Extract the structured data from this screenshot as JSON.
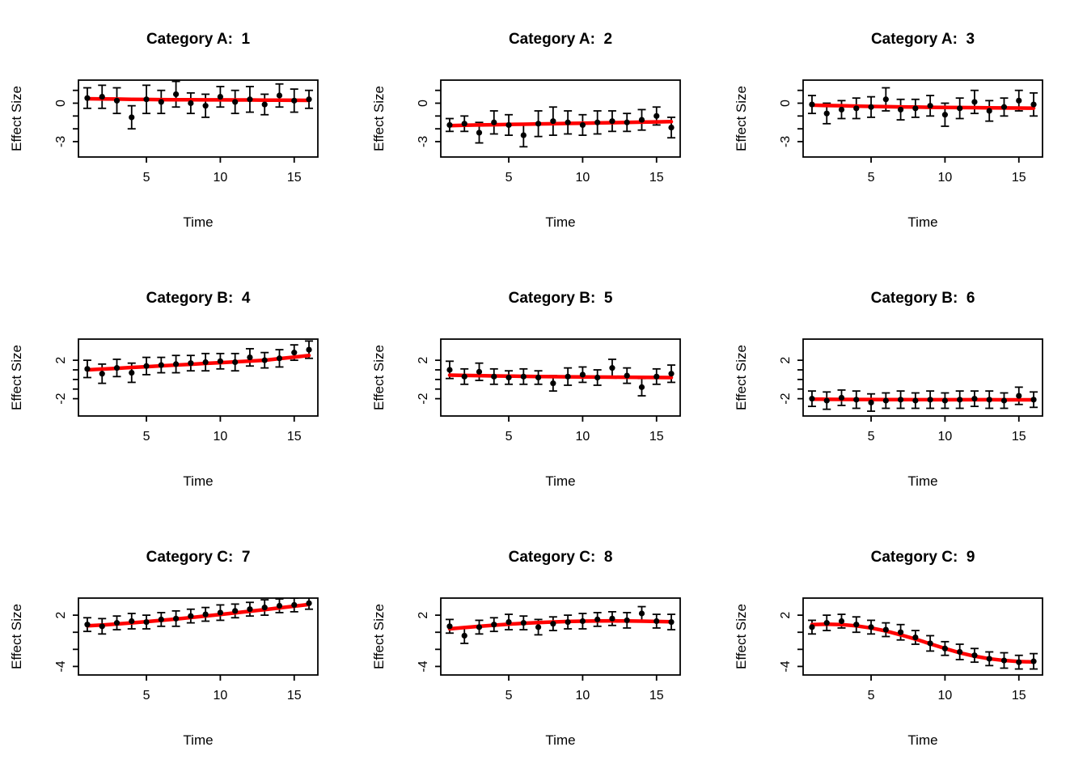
{
  "page": {
    "background": "#ffffff"
  },
  "colors": {
    "trend": "#FF0000",
    "point": "#000000",
    "axis": "#000000"
  },
  "chart_data": [
    {
      "type": "scatter",
      "title": "Category A:  1",
      "xlabel": "Time",
      "ylabel": "Effect Size",
      "x": [
        1,
        2,
        3,
        4,
        5,
        6,
        7,
        8,
        9,
        10,
        11,
        12,
        13,
        14,
        15,
        16
      ],
      "y": [
        0.4,
        0.5,
        0.2,
        -1.1,
        0.3,
        0.1,
        0.7,
        0.0,
        -0.2,
        0.5,
        0.1,
        0.3,
        -0.1,
        0.6,
        0.2,
        0.3
      ],
      "err": [
        0.8,
        0.9,
        1.0,
        0.9,
        1.1,
        0.9,
        1.0,
        0.8,
        0.9,
        0.8,
        0.9,
        1.0,
        0.8,
        0.9,
        0.9,
        0.7
      ],
      "trend": [
        0.35,
        0.33,
        0.32,
        0.3,
        0.29,
        0.28,
        0.27,
        0.27,
        0.26,
        0.26,
        0.25,
        0.25,
        0.24,
        0.24,
        0.23,
        0.22
      ],
      "xlim": [
        0.4,
        16.6
      ],
      "ylim": [
        -4.2,
        1.8
      ],
      "xticks": [
        5,
        10,
        15
      ],
      "yticks": [
        {
          "v": 1,
          "label": ""
        },
        {
          "v": 0,
          "label": "0"
        },
        {
          "v": -1,
          "label": ""
        },
        {
          "v": -2,
          "label": ""
        },
        {
          "v": -3,
          "label": "-3"
        }
      ],
      "grid": false
    },
    {
      "type": "scatter",
      "title": "Category A:  2",
      "xlabel": "Time",
      "ylabel": "Effect Size",
      "x": [
        1,
        2,
        3,
        4,
        5,
        6,
        7,
        8,
        9,
        10,
        11,
        12,
        13,
        14,
        15,
        16
      ],
      "y": [
        -1.7,
        -1.6,
        -2.3,
        -1.5,
        -1.7,
        -2.5,
        -1.6,
        -1.4,
        -1.5,
        -1.7,
        -1.5,
        -1.4,
        -1.5,
        -1.3,
        -1.0,
        -1.9
      ],
      "err": [
        0.5,
        0.6,
        0.8,
        0.9,
        0.8,
        0.9,
        1.0,
        1.1,
        0.9,
        0.8,
        0.9,
        0.8,
        0.7,
        0.8,
        0.7,
        0.8
      ],
      "trend": [
        -1.75,
        -1.72,
        -1.7,
        -1.68,
        -1.66,
        -1.64,
        -1.62,
        -1.6,
        -1.58,
        -1.56,
        -1.54,
        -1.52,
        -1.5,
        -1.48,
        -1.46,
        -1.44
      ],
      "xlim": [
        0.4,
        16.6
      ],
      "ylim": [
        -4.2,
        1.8
      ],
      "xticks": [
        5,
        10,
        15
      ],
      "yticks": [
        {
          "v": 1,
          "label": ""
        },
        {
          "v": 0,
          "label": "0"
        },
        {
          "v": -1,
          "label": ""
        },
        {
          "v": -2,
          "label": ""
        },
        {
          "v": -3,
          "label": "-3"
        }
      ],
      "grid": false
    },
    {
      "type": "scatter",
      "title": "Category A:  3",
      "xlabel": "Time",
      "ylabel": "Effect Size",
      "x": [
        1,
        2,
        3,
        4,
        5,
        6,
        7,
        8,
        9,
        10,
        11,
        12,
        13,
        14,
        15,
        16
      ],
      "y": [
        -0.1,
        -0.8,
        -0.5,
        -0.4,
        -0.3,
        0.3,
        -0.5,
        -0.4,
        -0.2,
        -0.9,
        -0.4,
        0.1,
        -0.6,
        -0.3,
        0.2,
        -0.1
      ],
      "err": [
        0.7,
        0.8,
        0.7,
        0.8,
        0.8,
        0.9,
        0.8,
        0.7,
        0.8,
        0.9,
        0.8,
        0.9,
        0.8,
        0.7,
        0.8,
        0.9
      ],
      "trend": [
        -0.15,
        -0.18,
        -0.2,
        -0.23,
        -0.25,
        -0.27,
        -0.29,
        -0.3,
        -0.32,
        -0.33,
        -0.34,
        -0.35,
        -0.36,
        -0.37,
        -0.38,
        -0.39
      ],
      "xlim": [
        0.4,
        16.6
      ],
      "ylim": [
        -4.2,
        1.8
      ],
      "xticks": [
        5,
        10,
        15
      ],
      "yticks": [
        {
          "v": 1,
          "label": ""
        },
        {
          "v": 0,
          "label": "0"
        },
        {
          "v": -1,
          "label": ""
        },
        {
          "v": -2,
          "label": ""
        },
        {
          "v": -3,
          "label": "-3"
        }
      ],
      "grid": false
    },
    {
      "type": "scatter",
      "title": "Category B:  4",
      "xlabel": "Time",
      "ylabel": "Effect Size",
      "x": [
        1,
        2,
        3,
        4,
        5,
        6,
        7,
        8,
        9,
        10,
        11,
        12,
        13,
        14,
        15,
        16
      ],
      "y": [
        1.1,
        0.6,
        1.2,
        0.7,
        1.4,
        1.5,
        1.6,
        1.7,
        1.8,
        1.9,
        1.8,
        2.3,
        2.0,
        2.2,
        2.8,
        3.1
      ],
      "err": [
        0.9,
        1.0,
        0.9,
        1.0,
        0.9,
        0.8,
        0.9,
        0.8,
        0.9,
        0.8,
        0.9,
        0.9,
        0.8,
        0.9,
        0.8,
        0.9
      ],
      "trend": [
        1.0,
        1.08,
        1.16,
        1.25,
        1.33,
        1.42,
        1.5,
        1.58,
        1.67,
        1.75,
        1.83,
        1.92,
        2.0,
        2.17,
        2.33,
        2.5
      ],
      "xlim": [
        0.4,
        16.6
      ],
      "ylim": [
        -3.8,
        4.2
      ],
      "xticks": [
        5,
        10,
        15
      ],
      "yticks": [
        {
          "v": 2,
          "label": "2"
        },
        {
          "v": 1,
          "label": ""
        },
        {
          "v": 0,
          "label": ""
        },
        {
          "v": -1,
          "label": ""
        },
        {
          "v": -2,
          "label": "-2"
        }
      ],
      "grid": false
    },
    {
      "type": "scatter",
      "title": "Category B:  5",
      "xlabel": "Time",
      "ylabel": "Effect Size",
      "x": [
        1,
        2,
        3,
        4,
        5,
        6,
        7,
        8,
        9,
        10,
        11,
        12,
        13,
        14,
        15,
        16
      ],
      "y": [
        1.0,
        0.3,
        0.8,
        0.3,
        0.2,
        0.3,
        0.2,
        -0.4,
        0.3,
        0.5,
        0.2,
        1.2,
        0.4,
        -0.8,
        0.3,
        0.6
      ],
      "err": [
        0.9,
        0.8,
        0.9,
        0.8,
        0.7,
        0.8,
        0.7,
        0.8,
        0.9,
        0.8,
        0.8,
        0.9,
        0.8,
        0.9,
        0.8,
        0.9
      ],
      "trend": [
        0.45,
        0.42,
        0.4,
        0.37,
        0.35,
        0.33,
        0.31,
        0.29,
        0.27,
        0.26,
        0.25,
        0.24,
        0.23,
        0.22,
        0.21,
        0.2
      ],
      "xlim": [
        0.4,
        16.6
      ],
      "ylim": [
        -3.8,
        4.2
      ],
      "xticks": [
        5,
        10,
        15
      ],
      "yticks": [
        {
          "v": 2,
          "label": "2"
        },
        {
          "v": 1,
          "label": ""
        },
        {
          "v": 0,
          "label": ""
        },
        {
          "v": -1,
          "label": ""
        },
        {
          "v": -2,
          "label": "-2"
        }
      ],
      "grid": false
    },
    {
      "type": "scatter",
      "title": "Category B:  6",
      "xlabel": "Time",
      "ylabel": "Effect Size",
      "x": [
        1,
        2,
        3,
        4,
        5,
        6,
        7,
        8,
        9,
        10,
        11,
        12,
        13,
        14,
        15,
        16
      ],
      "y": [
        -2.0,
        -2.2,
        -1.9,
        -2.1,
        -2.4,
        -2.2,
        -2.1,
        -2.2,
        -2.1,
        -2.2,
        -2.1,
        -2.0,
        -2.1,
        -2.2,
        -1.7,
        -2.1
      ],
      "err": [
        0.8,
        0.9,
        0.8,
        0.9,
        0.9,
        0.8,
        0.9,
        0.8,
        0.9,
        0.8,
        0.9,
        0.8,
        0.9,
        0.8,
        0.9,
        0.8
      ],
      "trend": [
        -2.05,
        -2.06,
        -2.07,
        -2.08,
        -2.08,
        -2.09,
        -2.09,
        -2.1,
        -2.1,
        -2.1,
        -2.11,
        -2.11,
        -2.11,
        -2.12,
        -2.12,
        -2.12
      ],
      "xlim": [
        0.4,
        16.6
      ],
      "ylim": [
        -3.8,
        4.2
      ],
      "xticks": [
        5,
        10,
        15
      ],
      "yticks": [
        {
          "v": 2,
          "label": "2"
        },
        {
          "v": 1,
          "label": ""
        },
        {
          "v": 0,
          "label": ""
        },
        {
          "v": -1,
          "label": ""
        },
        {
          "v": -2,
          "label": "-2"
        }
      ],
      "grid": false
    },
    {
      "type": "scatter",
      "title": "Category C:  7",
      "xlabel": "Time",
      "ylabel": "Effect Size",
      "x": [
        1,
        2,
        3,
        4,
        5,
        6,
        7,
        8,
        9,
        10,
        11,
        12,
        13,
        14,
        15,
        16
      ],
      "y": [
        0.9,
        0.7,
        1.1,
        1.3,
        1.2,
        1.5,
        1.6,
        1.9,
        2.1,
        2.3,
        2.5,
        2.7,
        2.9,
        3.1,
        3.2,
        3.4
      ],
      "err": [
        0.8,
        0.9,
        0.8,
        0.9,
        0.8,
        0.8,
        0.9,
        0.8,
        0.8,
        0.9,
        0.8,
        0.8,
        0.9,
        0.8,
        0.8,
        0.7
      ],
      "trend": [
        0.75,
        0.85,
        0.97,
        1.1,
        1.24,
        1.39,
        1.55,
        1.72,
        1.9,
        2.08,
        2.27,
        2.46,
        2.65,
        2.85,
        3.05,
        3.25
      ],
      "xlim": [
        0.4,
        16.6
      ],
      "ylim": [
        -5,
        4
      ],
      "xticks": [
        5,
        10,
        15
      ],
      "yticks": [
        {
          "v": 2,
          "label": "2"
        },
        {
          "v": 0,
          "label": ""
        },
        {
          "v": -2,
          "label": ""
        },
        {
          "v": -4,
          "label": "-4"
        }
      ],
      "grid": false
    },
    {
      "type": "scatter",
      "title": "Category C:  8",
      "xlabel": "Time",
      "ylabel": "Effect Size",
      "x": [
        1,
        2,
        3,
        4,
        5,
        6,
        7,
        8,
        9,
        10,
        11,
        12,
        13,
        14,
        15,
        16
      ],
      "y": [
        0.7,
        -0.4,
        0.6,
        0.9,
        1.2,
        1.1,
        0.6,
        1.0,
        1.2,
        1.3,
        1.5,
        1.6,
        1.4,
        2.2,
        1.3,
        1.2
      ],
      "err": [
        0.8,
        0.9,
        0.8,
        0.8,
        0.9,
        0.8,
        0.9,
        0.8,
        0.8,
        0.9,
        0.8,
        0.8,
        0.9,
        0.8,
        0.8,
        0.9
      ],
      "trend": [
        0.4,
        0.55,
        0.7,
        0.83,
        0.95,
        1.05,
        1.13,
        1.2,
        1.26,
        1.3,
        1.32,
        1.33,
        1.32,
        1.3,
        1.27,
        1.23
      ],
      "xlim": [
        0.4,
        16.6
      ],
      "ylim": [
        -5,
        4
      ],
      "xticks": [
        5,
        10,
        15
      ],
      "yticks": [
        {
          "v": 2,
          "label": "2"
        },
        {
          "v": 0,
          "label": ""
        },
        {
          "v": -2,
          "label": ""
        },
        {
          "v": -4,
          "label": "-4"
        }
      ],
      "grid": false
    },
    {
      "type": "scatter",
      "title": "Category C:  9",
      "xlabel": "Time",
      "ylabel": "Effect Size",
      "x": [
        1,
        2,
        3,
        4,
        5,
        6,
        7,
        8,
        9,
        10,
        11,
        12,
        13,
        14,
        15,
        16
      ],
      "y": [
        0.6,
        1.1,
        1.3,
        0.9,
        0.6,
        0.3,
        0.0,
        -0.6,
        -1.3,
        -1.9,
        -2.3,
        -2.7,
        -3.1,
        -3.3,
        -3.5,
        -3.4
      ],
      "err": [
        0.8,
        0.9,
        0.8,
        0.9,
        0.8,
        0.8,
        0.9,
        0.8,
        0.9,
        0.8,
        0.9,
        0.8,
        0.8,
        0.9,
        0.8,
        0.9
      ],
      "trend": [
        0.9,
        0.95,
        0.9,
        0.75,
        0.5,
        0.15,
        -0.3,
        -0.8,
        -1.35,
        -1.9,
        -2.4,
        -2.8,
        -3.1,
        -3.3,
        -3.42,
        -3.48
      ],
      "xlim": [
        0.4,
        16.6
      ],
      "ylim": [
        -5,
        4
      ],
      "xticks": [
        5,
        10,
        15
      ],
      "yticks": [
        {
          "v": 2,
          "label": "2"
        },
        {
          "v": 0,
          "label": ""
        },
        {
          "v": -2,
          "label": ""
        },
        {
          "v": -4,
          "label": "-4"
        }
      ],
      "grid": false
    }
  ]
}
